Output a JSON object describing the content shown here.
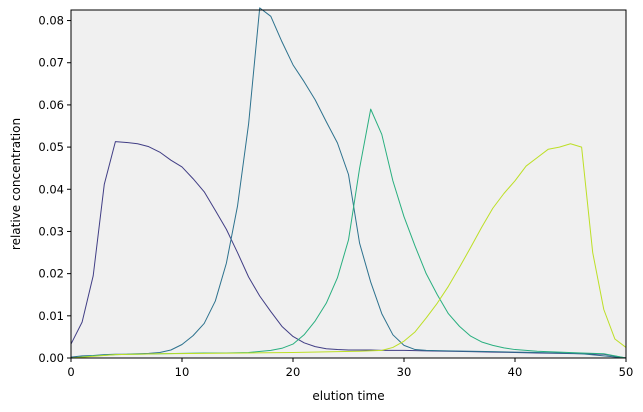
{
  "chart_data": {
    "type": "line",
    "title": "",
    "xlabel": "elution time",
    "ylabel": "relative concentration",
    "xlim": [
      0,
      50
    ],
    "ylim": [
      0,
      0.0825
    ],
    "grid": false,
    "background": "#f0f0f0",
    "xticks": [
      0,
      10,
      20,
      30,
      40,
      50
    ],
    "xtick_labels": [
      "0",
      "10",
      "20",
      "30",
      "40",
      "50"
    ],
    "yticks": [
      0.0,
      0.01,
      0.02,
      0.03,
      0.04,
      0.05,
      0.06,
      0.07,
      0.08
    ],
    "ytick_labels": [
      "0.00",
      "0.01",
      "0.02",
      "0.03",
      "0.04",
      "0.05",
      "0.06",
      "0.07",
      "0.08"
    ],
    "series": [
      {
        "color": "#413e85",
        "x": [
          0,
          1,
          2,
          3,
          4,
          5,
          6,
          7,
          8,
          9,
          10,
          11,
          12,
          13,
          14,
          15,
          16,
          17,
          18,
          19,
          20,
          21,
          22,
          23,
          24,
          25,
          26,
          27,
          28,
          29,
          30,
          32,
          34,
          36,
          38,
          40,
          42,
          44,
          46,
          48,
          50
        ],
        "y": [
          0.0033,
          0.0085,
          0.0195,
          0.0412,
          0.0513,
          0.0511,
          0.0508,
          0.0501,
          0.0488,
          0.0469,
          0.0453,
          0.0425,
          0.0394,
          0.035,
          0.0305,
          0.025,
          0.0192,
          0.0147,
          0.011,
          0.0075,
          0.0051,
          0.0036,
          0.0027,
          0.0022,
          0.002,
          0.0019,
          0.0019,
          0.0019,
          0.0018,
          0.0018,
          0.0018,
          0.0017,
          0.0016,
          0.0015,
          0.0014,
          0.0013,
          0.0012,
          0.0011,
          0.001,
          0.0009,
          0.0
        ]
      },
      {
        "color": "#2d728e",
        "x": [
          0,
          1,
          2,
          3,
          4,
          5,
          6,
          7,
          8,
          9,
          10,
          11,
          12,
          13,
          14,
          15,
          16,
          17,
          18,
          19,
          20,
          21,
          22,
          23,
          24,
          25,
          26,
          27,
          28,
          29,
          30,
          31,
          32,
          34,
          36,
          38,
          40,
          42,
          44,
          46,
          48,
          50
        ],
        "y": [
          0.0002,
          0.0005,
          0.0006,
          0.0008,
          0.0009,
          0.0009,
          0.001,
          0.0011,
          0.0013,
          0.0019,
          0.0032,
          0.0053,
          0.0082,
          0.0135,
          0.0225,
          0.036,
          0.0555,
          0.083,
          0.081,
          0.075,
          0.0695,
          0.0655,
          0.0612,
          0.056,
          0.051,
          0.0435,
          0.0272,
          0.018,
          0.0105,
          0.0055,
          0.003,
          0.002,
          0.0018,
          0.0017,
          0.0016,
          0.0015,
          0.0014,
          0.0013,
          0.0012,
          0.001,
          0.0005,
          0.0
        ]
      },
      {
        "color": "#29af7f",
        "x": [
          0,
          2,
          4,
          6,
          8,
          10,
          12,
          14,
          16,
          18,
          19,
          20,
          21,
          22,
          23,
          24,
          25,
          26,
          27,
          28,
          29,
          30,
          31,
          32,
          33,
          34,
          35,
          36,
          37,
          38,
          39,
          40,
          42,
          44,
          46,
          48,
          49,
          50
        ],
        "y": [
          0.0,
          0.0005,
          0.0008,
          0.0009,
          0.001,
          0.0011,
          0.0012,
          0.0012,
          0.0013,
          0.0018,
          0.0023,
          0.0033,
          0.0055,
          0.0088,
          0.013,
          0.019,
          0.028,
          0.045,
          0.059,
          0.053,
          0.042,
          0.0335,
          0.0265,
          0.02,
          0.015,
          0.0105,
          0.0075,
          0.0052,
          0.0038,
          0.003,
          0.0024,
          0.002,
          0.0016,
          0.0014,
          0.0012,
          0.001,
          0.0005,
          0.0
        ]
      },
      {
        "color": "#bddf26",
        "x": [
          0,
          4,
          8,
          12,
          16,
          20,
          24,
          26,
          28,
          29,
          30,
          31,
          32,
          33,
          34,
          35,
          36,
          37,
          38,
          39,
          40,
          41,
          42,
          43,
          44,
          45,
          46,
          47,
          48,
          49,
          50
        ],
        "y": [
          0.0,
          0.0008,
          0.001,
          0.0011,
          0.0012,
          0.0013,
          0.0015,
          0.0016,
          0.0018,
          0.0025,
          0.004,
          0.0062,
          0.0095,
          0.013,
          0.017,
          0.0215,
          0.0262,
          0.031,
          0.0355,
          0.039,
          0.042,
          0.0455,
          0.0475,
          0.0495,
          0.05,
          0.0508,
          0.05,
          0.025,
          0.0115,
          0.0045,
          0.0025
        ]
      }
    ]
  }
}
